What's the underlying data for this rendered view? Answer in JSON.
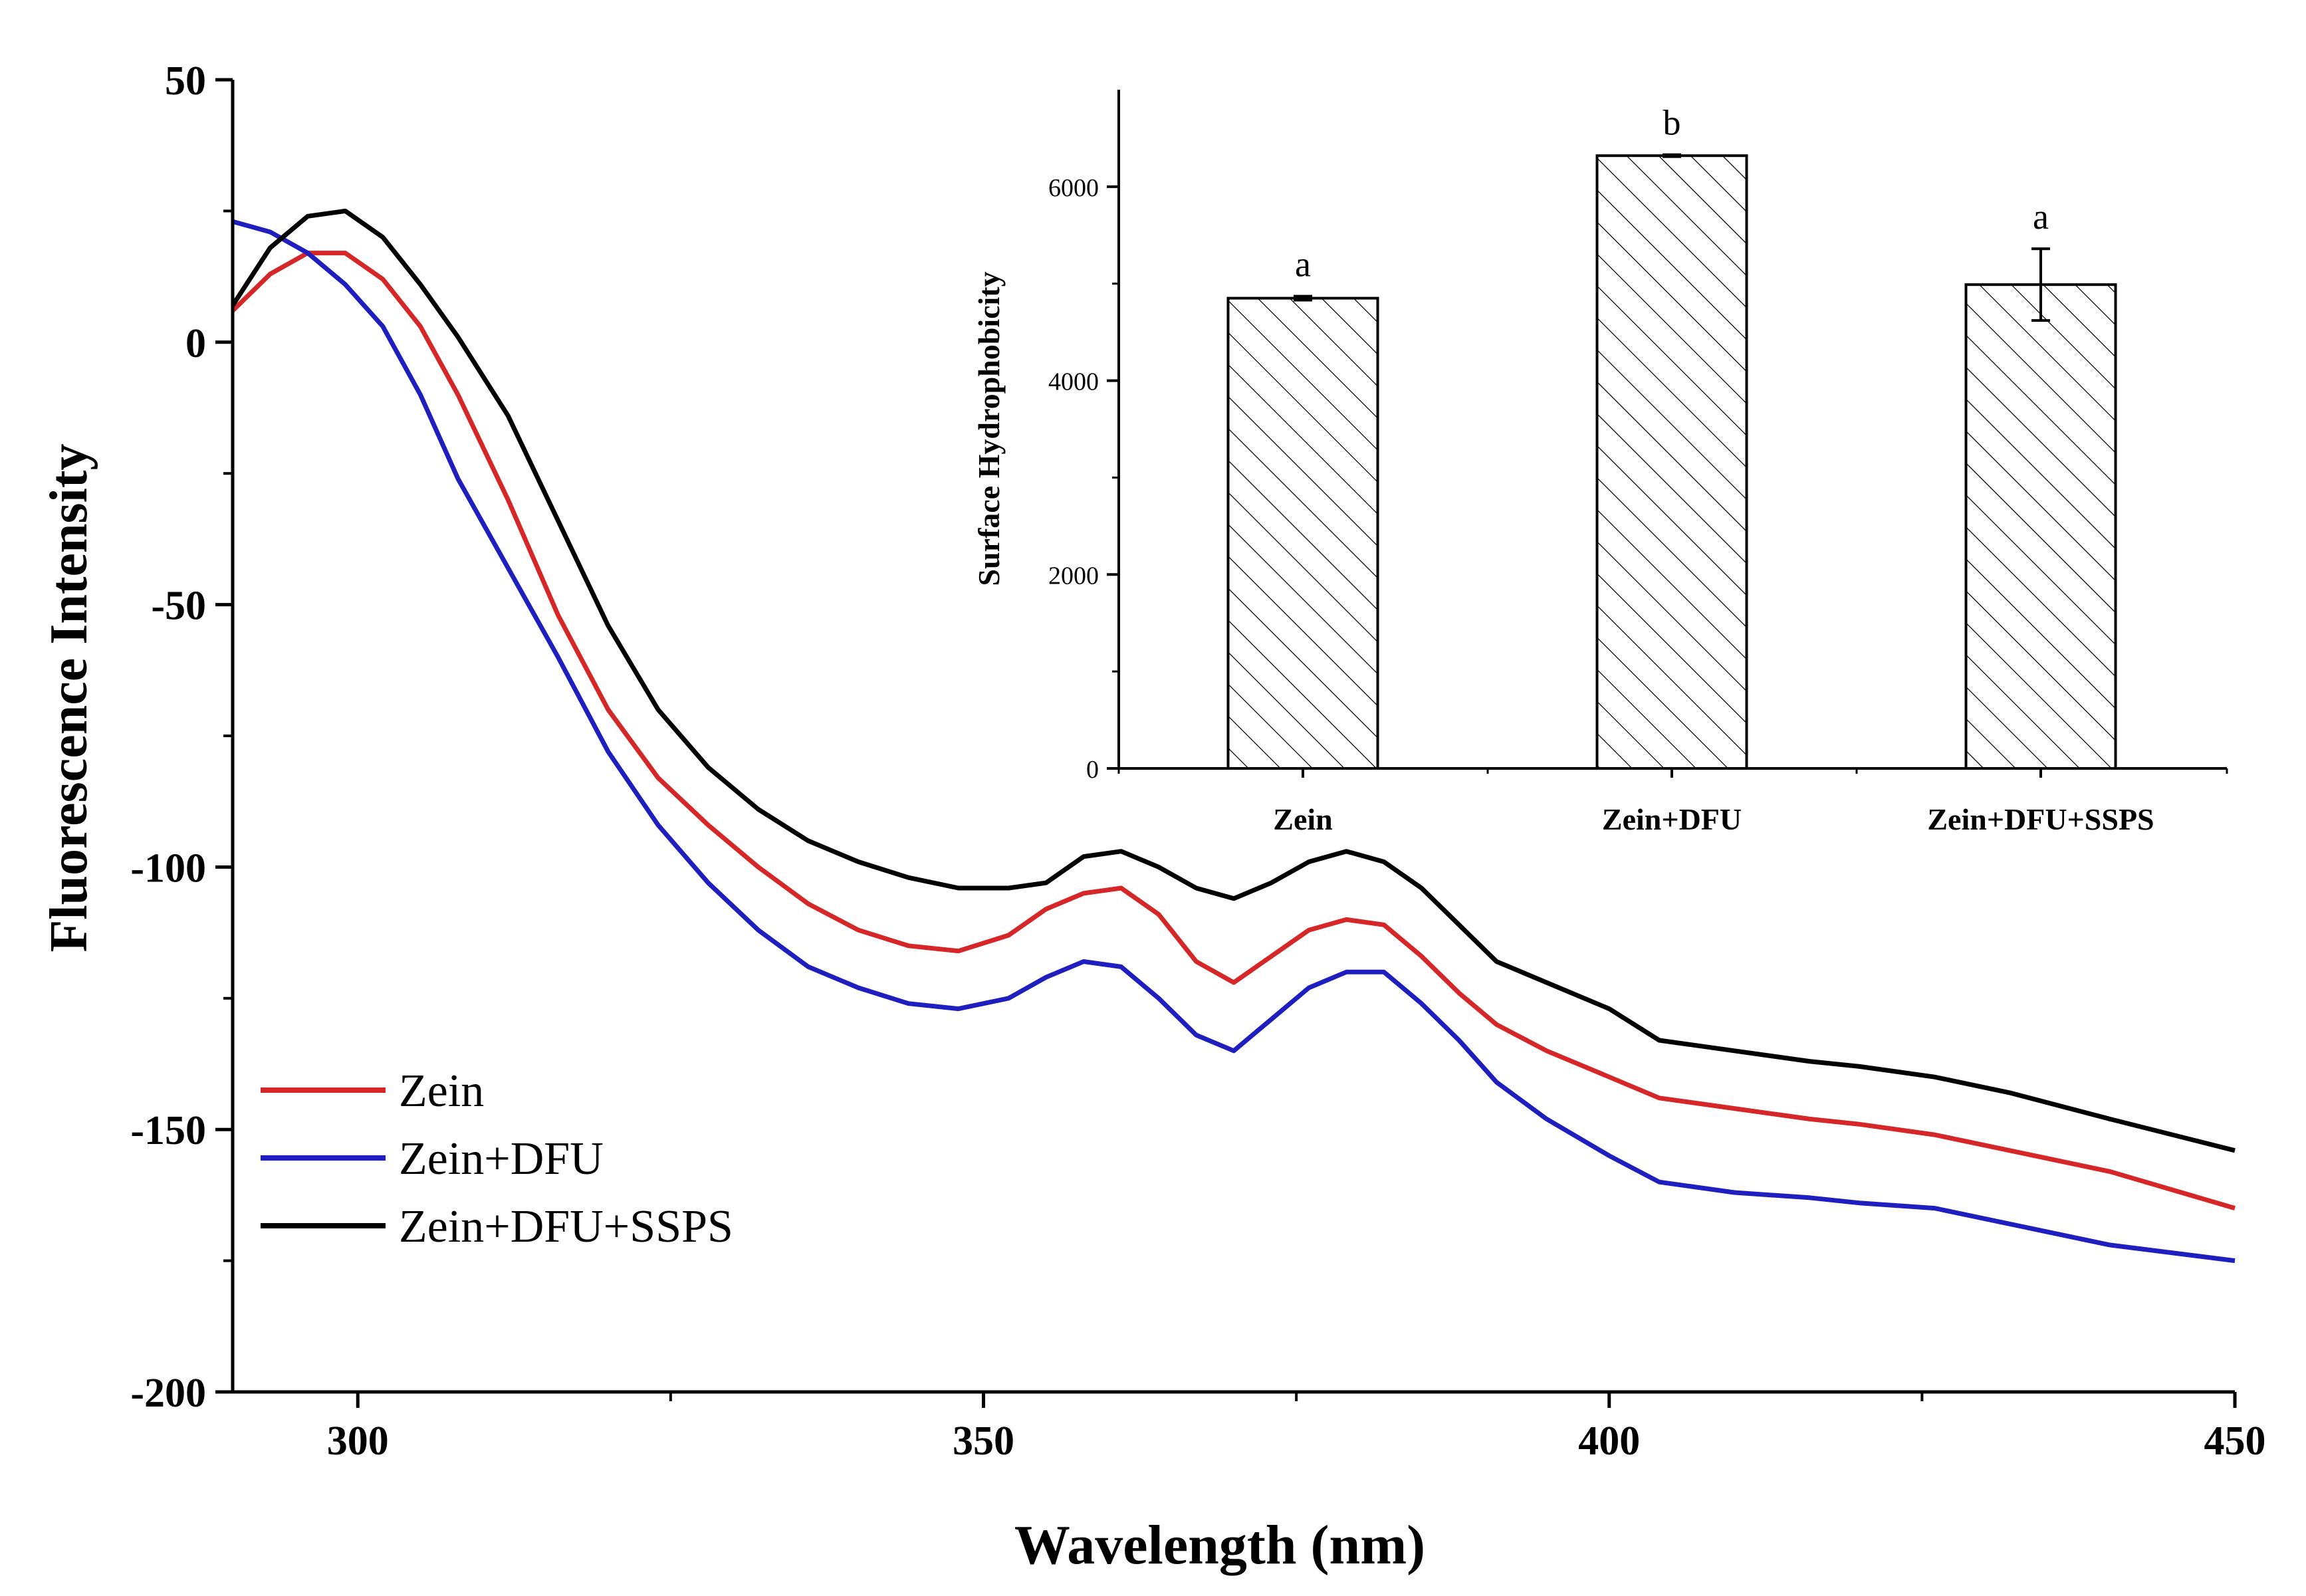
{
  "chart_data": [
    {
      "type": "line",
      "title": "",
      "xlabel": "Wavelength (nm)",
      "ylabel": "Fluorescence Intensity",
      "xlim": [
        290,
        450
      ],
      "ylim": [
        -200,
        50
      ],
      "xticks": [
        300,
        350,
        400,
        450
      ],
      "yticks": [
        -200,
        -150,
        -100,
        -50,
        0,
        50
      ],
      "xtick_labels": [
        "300",
        "350",
        "400",
        "450"
      ],
      "ytick_labels": [
        "-200",
        "-150",
        "-100",
        "-50",
        "0",
        "50"
      ],
      "legend_position": "bottom-left",
      "series": [
        {
          "name": "Zein",
          "color": "#d62728",
          "x": [
            290,
            293,
            296,
            299,
            302,
            305,
            308,
            312,
            316,
            320,
            324,
            328,
            332,
            336,
            340,
            344,
            348,
            352,
            355,
            358,
            361,
            364,
            367,
            370,
            373,
            376,
            379,
            382,
            385,
            388,
            391,
            395,
            400,
            404,
            410,
            416,
            420,
            426,
            432,
            440,
            450
          ],
          "y": [
            6,
            13,
            17,
            17,
            12,
            3,
            -10,
            -30,
            -52,
            -70,
            -83,
            -92,
            -100,
            -107,
            -112,
            -115,
            -116,
            -113,
            -108,
            -105,
            -104,
            -109,
            -118,
            -122,
            -117,
            -112,
            -110,
            -111,
            -117,
            -124,
            -130,
            -135,
            -140,
            -144,
            -146,
            -148,
            -149,
            -151,
            -154,
            -158,
            -165
          ]
        },
        {
          "name": "Zein+DFU",
          "color": "#1f1fbf",
          "x": [
            290,
            293,
            296,
            299,
            302,
            305,
            308,
            312,
            316,
            320,
            324,
            328,
            332,
            336,
            340,
            344,
            348,
            352,
            355,
            358,
            361,
            364,
            367,
            370,
            373,
            376,
            379,
            382,
            385,
            388,
            391,
            395,
            400,
            404,
            410,
            416,
            420,
            426,
            432,
            440,
            450
          ],
          "y": [
            23,
            21,
            17,
            11,
            3,
            -10,
            -26,
            -43,
            -60,
            -78,
            -92,
            -103,
            -112,
            -119,
            -123,
            -126,
            -127,
            -125,
            -121,
            -118,
            -119,
            -125,
            -132,
            -135,
            -129,
            -123,
            -120,
            -120,
            -126,
            -133,
            -141,
            -148,
            -155,
            -160,
            -162,
            -163,
            -164,
            -165,
            -168,
            -172,
            -175
          ]
        },
        {
          "name": "Zein+DFU+SSPS",
          "color": "#000000",
          "x": [
            290,
            293,
            296,
            299,
            302,
            305,
            308,
            312,
            316,
            320,
            324,
            328,
            332,
            336,
            340,
            344,
            348,
            352,
            355,
            358,
            361,
            364,
            367,
            370,
            373,
            376,
            379,
            382,
            385,
            388,
            391,
            395,
            400,
            404,
            410,
            416,
            420,
            426,
            432,
            440,
            450
          ],
          "y": [
            7,
            18,
            24,
            25,
            20,
            11,
            1,
            -14,
            -34,
            -54,
            -70,
            -81,
            -89,
            -95,
            -99,
            -102,
            -104,
            -104,
            -103,
            -98,
            -97,
            -100,
            -104,
            -106,
            -103,
            -99,
            -97,
            -99,
            -104,
            -111,
            -118,
            -122,
            -127,
            -133,
            -135,
            -137,
            -138,
            -140,
            -143,
            -148,
            -154
          ]
        }
      ]
    },
    {
      "type": "bar",
      "title": "",
      "xlabel": "",
      "ylabel": "Surface Hydrophobicity",
      "ylim": [
        0,
        7000
      ],
      "yticks": [
        0,
        2000,
        4000,
        6000
      ],
      "ytick_labels": [
        "0",
        "2000",
        "4000",
        "6000"
      ],
      "categories": [
        "Zein",
        "Zein+DFU",
        "Zein+DFU+SSPS"
      ],
      "values": [
        4850,
        6320,
        4990
      ],
      "errors": [
        20,
        10,
        370
      ],
      "significance": [
        "a",
        "b",
        "a"
      ],
      "bar_fill": "hatched"
    }
  ]
}
